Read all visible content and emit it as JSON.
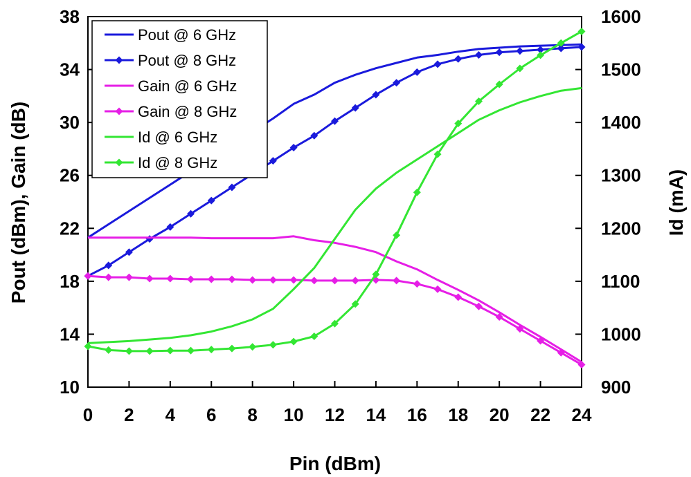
{
  "chart_data": {
    "type": "line",
    "xlabel": "Pin (dBm)",
    "ylabel": "Pout (dBm), Gain (dB)",
    "y2label": "Id (mA)",
    "xlim": [
      0,
      24
    ],
    "ylim": [
      10,
      38
    ],
    "y2lim": [
      900,
      1600
    ],
    "xticks": [
      0,
      2,
      4,
      6,
      8,
      10,
      12,
      14,
      16,
      18,
      20,
      22,
      24
    ],
    "yticks": [
      10,
      14,
      18,
      22,
      26,
      30,
      34,
      38
    ],
    "y2ticks": [
      900,
      1000,
      1100,
      1200,
      1300,
      1400,
      1500,
      1600
    ],
    "grid": false,
    "legend_position": "top-left",
    "x": [
      0,
      1,
      2,
      3,
      4,
      5,
      6,
      7,
      8,
      9,
      10,
      11,
      12,
      13,
      14,
      15,
      16,
      17,
      18,
      19,
      20,
      21,
      22,
      23,
      24
    ],
    "series": [
      {
        "name": "Pout @ 6 GHz",
        "axis": "left",
        "color": "#1a1adc",
        "marker": "none",
        "values": [
          21.3,
          22.3,
          23.3,
          24.3,
          25.3,
          26.3,
          27.3,
          28.3,
          29.3,
          30.3,
          31.4,
          32.1,
          33.0,
          33.6,
          34.1,
          34.5,
          34.9,
          35.1,
          35.35,
          35.55,
          35.65,
          35.75,
          35.8,
          35.85,
          35.9
        ]
      },
      {
        "name": "Pout @ 8 GHz",
        "axis": "left",
        "color": "#1a1adc",
        "marker": "diamond",
        "values": [
          18.4,
          19.2,
          20.2,
          21.2,
          22.1,
          23.1,
          24.1,
          25.1,
          26.1,
          27.1,
          28.1,
          29.0,
          30.1,
          31.1,
          32.1,
          33.0,
          33.8,
          34.4,
          34.8,
          35.1,
          35.3,
          35.4,
          35.5,
          35.6,
          35.7
        ]
      },
      {
        "name": "Gain @ 6 GHz",
        "axis": "left",
        "color": "#e61ee6",
        "marker": "none",
        "values": [
          21.3,
          21.3,
          21.3,
          21.3,
          21.3,
          21.3,
          21.25,
          21.25,
          21.25,
          21.25,
          21.4,
          21.1,
          20.9,
          20.6,
          20.2,
          19.5,
          18.9,
          18.1,
          17.35,
          16.55,
          15.65,
          14.7,
          13.8,
          12.85,
          11.9
        ]
      },
      {
        "name": "Gain @ 8 GHz",
        "axis": "left",
        "color": "#e61ee6",
        "marker": "diamond",
        "values": [
          18.4,
          18.3,
          18.3,
          18.2,
          18.2,
          18.15,
          18.15,
          18.15,
          18.1,
          18.1,
          18.1,
          18.05,
          18.05,
          18.05,
          18.1,
          18.05,
          17.8,
          17.4,
          16.8,
          16.1,
          15.3,
          14.4,
          13.5,
          12.6,
          11.7
        ]
      },
      {
        "name": "Id @ 6 GHz",
        "axis": "right",
        "color": "#33e633",
        "marker": "none",
        "values": [
          983,
          985,
          987,
          990,
          993,
          998,
          1005,
          1015,
          1028,
          1048,
          1085,
          1125,
          1180,
          1235,
          1275,
          1305,
          1330,
          1355,
          1380,
          1405,
          1423,
          1438,
          1450,
          1460,
          1465
        ]
      },
      {
        "name": "Id @ 8 GHz",
        "axis": "right",
        "color": "#33e633",
        "marker": "diamond",
        "values": [
          977,
          970,
          968,
          968,
          969,
          969,
          971,
          973,
          976,
          980,
          986,
          996,
          1020,
          1057,
          1113,
          1187,
          1268,
          1340,
          1398,
          1440,
          1472,
          1502,
          1527,
          1550,
          1572
        ]
      }
    ]
  }
}
